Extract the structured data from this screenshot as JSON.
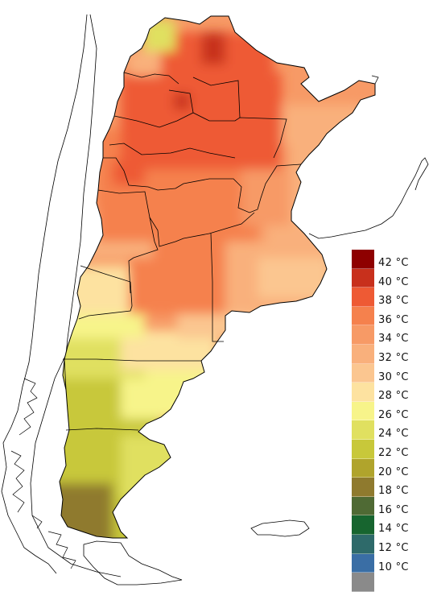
{
  "map": {
    "colors": {
      "outline": "#000000",
      "neighbor": "#ffffff",
      "sea": "#ffffff"
    }
  },
  "legend": {
    "items": [
      {
        "label": "42 °C",
        "color": "#8e0000"
      },
      {
        "label": "40 °C",
        "color": "#c8301c"
      },
      {
        "label": "38 °C",
        "color": "#ee5a34"
      },
      {
        "label": "36 °C",
        "color": "#f5814d"
      },
      {
        "label": "34 °C",
        "color": "#f79a66"
      },
      {
        "label": "32 °C",
        "color": "#f9b07c"
      },
      {
        "label": "30 °C",
        "color": "#fbc690"
      },
      {
        "label": "28 °C",
        "color": "#fde2a0"
      },
      {
        "label": "26 °C",
        "color": "#f7f48a"
      },
      {
        "label": "24 °C",
        "color": "#e0e060"
      },
      {
        "label": "22 °C",
        "color": "#c8c83a"
      },
      {
        "label": "20 °C",
        "color": "#b0a42c"
      },
      {
        "label": "18 °C",
        "color": "#8f7a2e"
      },
      {
        "label": "16 °C",
        "color": "#4f6a34"
      },
      {
        "label": "14 °C",
        "color": "#17652f"
      },
      {
        "label": "12 °C",
        "color": "#2e6a6a"
      },
      {
        "label": "10 °C",
        "color": "#3a6ea5"
      },
      {
        "label": "",
        "color": "#8a8a8a"
      }
    ]
  }
}
